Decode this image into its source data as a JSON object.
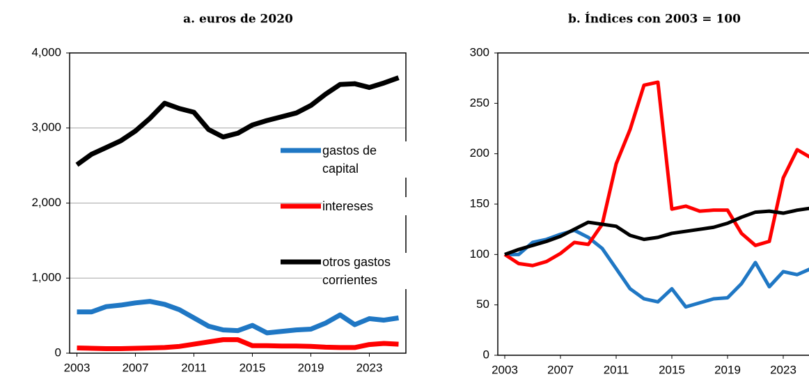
{
  "chart_data": [
    {
      "type": "line",
      "title": "a. euros de 2020",
      "x": [
        2003,
        2004,
        2005,
        2006,
        2007,
        2008,
        2009,
        2010,
        2011,
        2012,
        2013,
        2014,
        2015,
        2016,
        2017,
        2018,
        2019,
        2020,
        2021,
        2022,
        2023,
        2024,
        2025
      ],
      "series": [
        {
          "name": "gastos de capital",
          "color": "#1f77c4",
          "values": [
            550,
            550,
            620,
            640,
            670,
            690,
            650,
            580,
            470,
            360,
            310,
            300,
            370,
            270,
            290,
            310,
            320,
            400,
            510,
            380,
            460,
            440,
            470
          ]
        },
        {
          "name": "intereses",
          "color": "#ff0000",
          "values": [
            70,
            65,
            60,
            60,
            65,
            70,
            75,
            90,
            120,
            150,
            180,
            180,
            100,
            100,
            95,
            95,
            90,
            80,
            75,
            75,
            115,
            130,
            120
          ]
        },
        {
          "name": "otros gastos corrientes",
          "color": "#000000",
          "values": [
            2510,
            2650,
            2740,
            2830,
            2960,
            3130,
            3330,
            3260,
            3210,
            2980,
            2880,
            2930,
            3040,
            3100,
            3150,
            3200,
            3300,
            3450,
            3580,
            3590,
            3540,
            3600,
            3670
          ]
        }
      ],
      "xlim": [
        2002.5,
        2025.5
      ],
      "xticks": [
        2003,
        2007,
        2011,
        2015,
        2019,
        2023
      ],
      "ylim": [
        0,
        4000
      ],
      "yticks": [
        0,
        {
          "value": 1000,
          "label": "1,000"
        },
        {
          "value": 2000,
          "label": "2,000"
        },
        {
          "value": 3000,
          "label": "3,000"
        },
        {
          "value": 4000,
          "label": "4,000"
        }
      ],
      "grid": true,
      "legend": "right"
    },
    {
      "type": "line",
      "title": "b. Índices con 2003 = 100",
      "x": [
        2003,
        2004,
        2005,
        2006,
        2007,
        2008,
        2009,
        2010,
        2011,
        2012,
        2013,
        2014,
        2015,
        2016,
        2017,
        2018,
        2019,
        2020,
        2021,
        2022,
        2023,
        2024,
        2025
      ],
      "series": [
        {
          "color": "#1f77c4",
          "values": [
            100,
            100,
            112,
            115,
            120,
            124,
            117,
            106,
            86,
            66,
            56,
            53,
            66,
            48,
            52,
            56,
            57,
            71,
            92,
            68,
            83,
            80,
            86
          ]
        },
        {
          "color": "#ff0000",
          "values": [
            100,
            91,
            89,
            93,
            101,
            112,
            110,
            130,
            190,
            224,
            268,
            271,
            145,
            148,
            143,
            144,
            144,
            121,
            109,
            113,
            176,
            204,
            196
          ]
        },
        {
          "color": "#000000",
          "values": [
            100,
            105,
            109,
            113,
            118,
            125,
            132,
            130,
            128,
            119,
            115,
            117,
            121,
            123,
            125,
            127,
            131,
            137,
            142,
            143,
            141,
            144,
            146
          ]
        }
      ],
      "xlim": [
        2002.5,
        2025.5
      ],
      "xticks": [
        2003,
        2007,
        2011,
        2015,
        2019,
        2023
      ],
      "ylim": [
        0,
        300
      ],
      "yticks": [
        0,
        50,
        100,
        150,
        200,
        250,
        300
      ],
      "grid": false
    }
  ]
}
